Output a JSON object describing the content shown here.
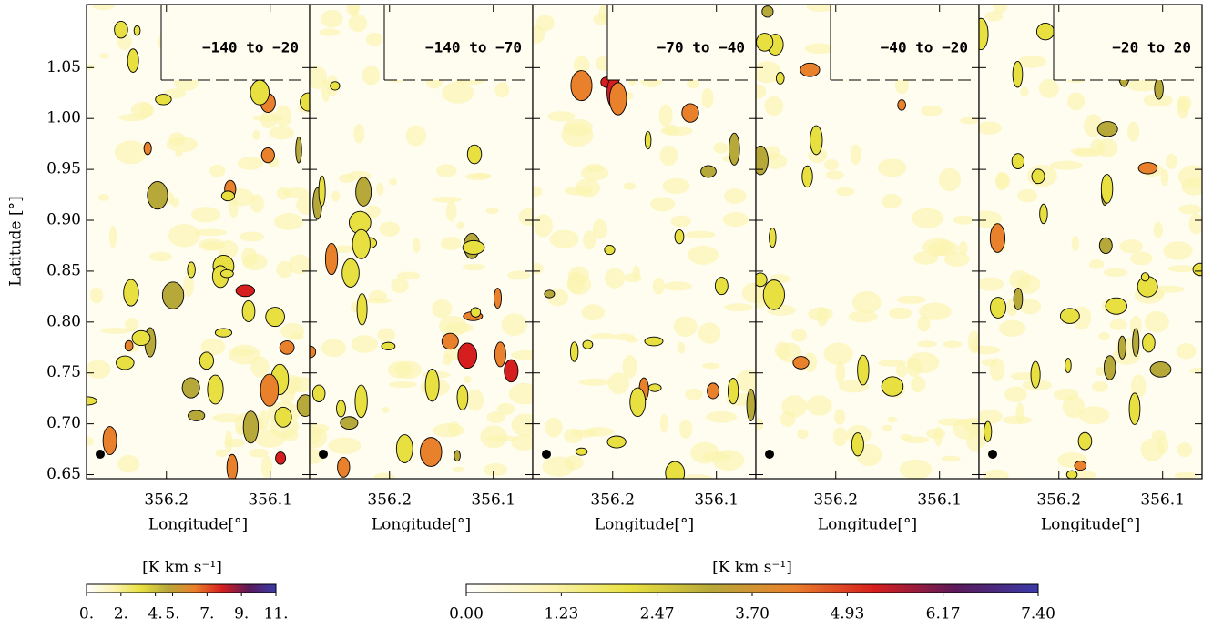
{
  "chart_data": {
    "type": "map",
    "x_label": "Longitude[°]",
    "y_label": "Latitude [°]",
    "panels": [
      {
        "label": "−140 to −20"
      },
      {
        "label": "−140 to −70"
      },
      {
        "label": "−70 to −40"
      },
      {
        "label": "−40 to −20"
      },
      {
        "label": "−20 to 20"
      }
    ],
    "xlim": [
      356.277,
      356.062
    ],
    "xticks": [
      356.2,
      356.1
    ],
    "ylim": [
      0.646,
      1.112
    ],
    "yticks": [
      0.65,
      {
        "value": 0.7,
        "label": "0.70"
      },
      0.75,
      {
        "value": 0.8,
        "label": "0.80"
      },
      0.85,
      {
        "value": 0.9,
        "label": "0.90"
      },
      0.95,
      {
        "value": 1.0,
        "label": "1.00"
      },
      1.05
    ],
    "colormap": [
      "#ffffff",
      "#fbf3b0",
      "#e8e040",
      "#b7a83a",
      "#e8802c",
      "#d61e1e",
      "#5a1a5a",
      "#3a3aa8"
    ],
    "colorbars": [
      {
        "title": "[K km s⁻¹]",
        "clim": [
          0,
          11
        ],
        "ticks": [
          {
            "value": 0,
            "label": "0."
          },
          {
            "value": 2,
            "label": "2."
          },
          {
            "value": 4,
            "label": "4."
          },
          {
            "value": 5,
            "label": "5."
          },
          {
            "value": 7,
            "label": "7."
          },
          {
            "value": 9,
            "label": "9."
          },
          {
            "value": 11,
            "label": "11."
          }
        ]
      },
      {
        "title": "[K km s⁻¹]",
        "clim": [
          0,
          7.4
        ],
        "ticks": [
          {
            "value": 0,
            "label": "0.00"
          },
          {
            "value": 1.23,
            "label": "1.23"
          },
          {
            "value": 2.47,
            "label": "2.47"
          },
          {
            "value": 3.7,
            "label": "3.70"
          },
          {
            "value": 4.93,
            "label": "4.93"
          },
          {
            "value": 6.17,
            "label": "6.17"
          },
          {
            "value": 7.4,
            "label": "7.40"
          }
        ]
      }
    ]
  }
}
